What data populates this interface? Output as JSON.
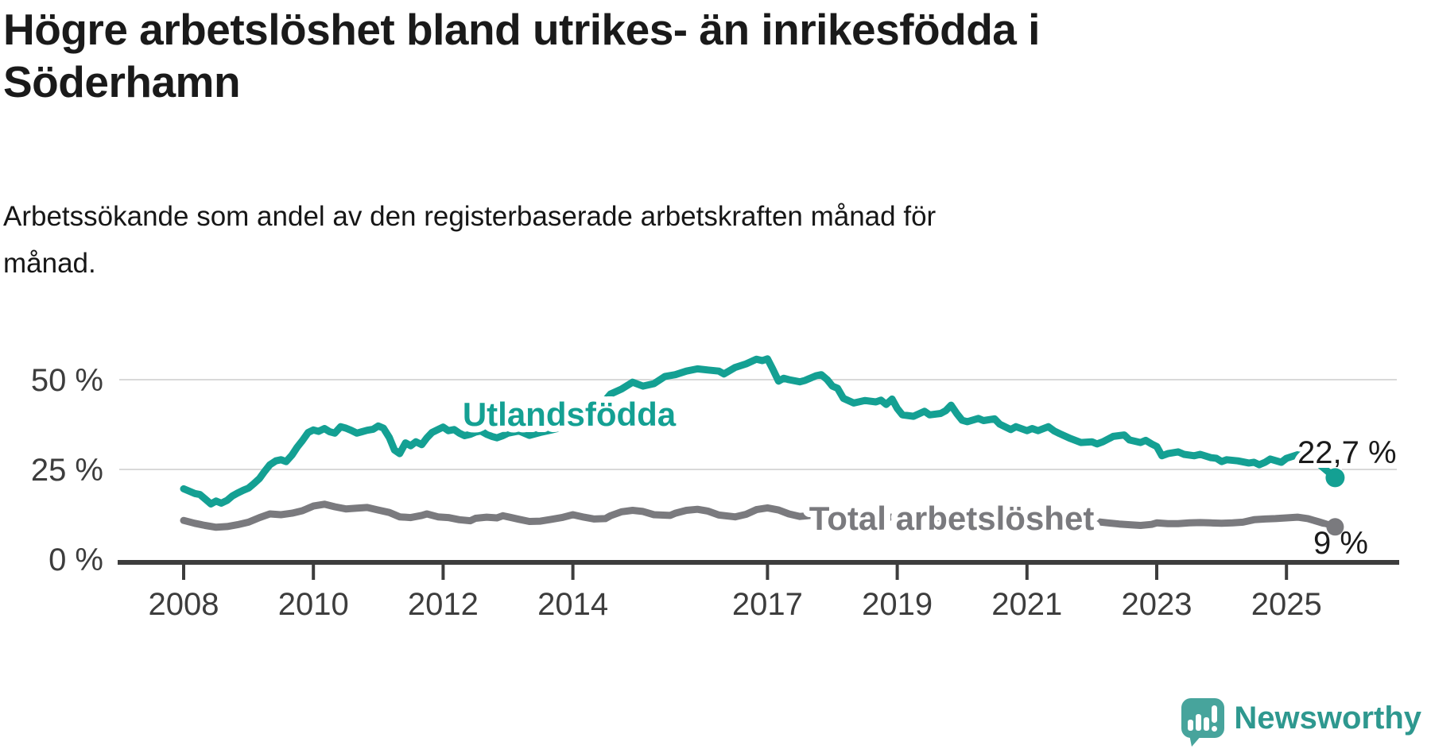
{
  "page": {
    "title_lines": [
      "Högre arbetslöshet bland utrikes- än inrikesfödda i",
      "Söderhamn"
    ],
    "subtitle_lines": [
      "Arbetssökande som andel av den registerbaserade arbetskraften månad för",
      "månad."
    ]
  },
  "footer": {
    "brand": "Newsworthy",
    "logo_icon": "newsworthy-speech-bubble-bar-chart-icon"
  },
  "colors": {
    "foreign_born_line": "#14A093",
    "total_line": "#7A7A7E",
    "grid": "#D9D9D9",
    "axis": "#3D3D3D",
    "annotation_text": "#1A1A1A",
    "logo_bubble": "#47A49C",
    "logo_text": "#2E988F"
  },
  "chart_data": {
    "type": "line",
    "title": "Högre arbetslöshet bland utrikes- än inrikesfödda i Söderhamn",
    "subtitle": "Arbetssökande som andel av den registerbaserade arbetskraften månad för månad.",
    "unit": "%",
    "xlim": [
      2008,
      2026.2
    ],
    "ylim": [
      0,
      58
    ],
    "grid": "horizontal-only",
    "x_ticks": [
      {
        "year": 2008,
        "label": "2008"
      },
      {
        "year": 2010,
        "label": "2010"
      },
      {
        "year": 2012,
        "label": "2012"
      },
      {
        "year": 2014,
        "label": "2014"
      },
      {
        "year": 2017,
        "label": "2017"
      },
      {
        "year": 2019,
        "label": "2019"
      },
      {
        "year": 2021,
        "label": "2021"
      },
      {
        "year": 2023,
        "label": "2023"
      },
      {
        "year": 2025,
        "label": "2025"
      }
    ],
    "y_ticks": [
      {
        "value": 0,
        "label": "0 %"
      },
      {
        "value": 25,
        "label": "25 %"
      },
      {
        "value": 50,
        "label": "50 %"
      }
    ],
    "series": [
      {
        "name": "Utlandsfödda",
        "color": "#14A093",
        "end_label": "22,7 %",
        "end_value": 22.7,
        "points": [
          [
            2008.0,
            19.6
          ],
          [
            2008.08,
            19.0
          ],
          [
            2008.17,
            18.3
          ],
          [
            2008.25,
            18.0
          ],
          [
            2008.33,
            16.8
          ],
          [
            2008.42,
            15.4
          ],
          [
            2008.5,
            16.2
          ],
          [
            2008.58,
            15.6
          ],
          [
            2008.67,
            16.4
          ],
          [
            2008.75,
            17.6
          ],
          [
            2008.83,
            18.4
          ],
          [
            2008.92,
            19.2
          ],
          [
            2009.0,
            19.8
          ],
          [
            2009.08,
            21.0
          ],
          [
            2009.17,
            22.5
          ],
          [
            2009.25,
            24.5
          ],
          [
            2009.33,
            26.3
          ],
          [
            2009.42,
            27.4
          ],
          [
            2009.5,
            27.7
          ],
          [
            2009.58,
            27.2
          ],
          [
            2009.67,
            29.0
          ],
          [
            2009.75,
            31.2
          ],
          [
            2009.83,
            33.0
          ],
          [
            2009.92,
            35.3
          ],
          [
            2010.0,
            36.0
          ],
          [
            2010.08,
            35.6
          ],
          [
            2010.17,
            36.4
          ],
          [
            2010.25,
            35.5
          ],
          [
            2010.33,
            35.1
          ],
          [
            2010.42,
            36.9
          ],
          [
            2010.5,
            36.5
          ],
          [
            2010.58,
            35.9
          ],
          [
            2010.67,
            35.1
          ],
          [
            2010.75,
            35.5
          ],
          [
            2010.83,
            35.9
          ],
          [
            2010.92,
            36.2
          ],
          [
            2011.0,
            37.1
          ],
          [
            2011.08,
            36.5
          ],
          [
            2011.17,
            33.9
          ],
          [
            2011.25,
            30.4
          ],
          [
            2011.33,
            29.4
          ],
          [
            2011.42,
            32.4
          ],
          [
            2011.5,
            31.6
          ],
          [
            2011.58,
            32.7
          ],
          [
            2011.67,
            31.9
          ],
          [
            2011.75,
            33.8
          ],
          [
            2011.83,
            35.3
          ],
          [
            2011.92,
            36.1
          ],
          [
            2012.0,
            36.8
          ],
          [
            2012.08,
            35.8
          ],
          [
            2012.17,
            36.1
          ],
          [
            2012.25,
            35.1
          ],
          [
            2012.33,
            34.4
          ],
          [
            2012.42,
            34.8
          ],
          [
            2012.5,
            35.4
          ],
          [
            2012.58,
            35.7
          ],
          [
            2012.67,
            34.8
          ],
          [
            2012.75,
            34.2
          ],
          [
            2012.83,
            33.8
          ],
          [
            2012.92,
            34.4
          ],
          [
            2013.0,
            35.1
          ],
          [
            2013.17,
            35.7
          ],
          [
            2013.33,
            34.5
          ],
          [
            2013.5,
            35.3
          ],
          [
            2013.67,
            36.0
          ],
          [
            2013.83,
            36.7
          ],
          [
            2014.0,
            37.8
          ],
          [
            2014.17,
            39.4
          ],
          [
            2014.33,
            41.8
          ],
          [
            2014.5,
            44.3
          ],
          [
            2014.58,
            46.0
          ],
          [
            2014.75,
            47.4
          ],
          [
            2014.92,
            49.3
          ],
          [
            2015.08,
            48.2
          ],
          [
            2015.25,
            48.9
          ],
          [
            2015.42,
            50.9
          ],
          [
            2015.58,
            51.4
          ],
          [
            2015.75,
            52.4
          ],
          [
            2015.92,
            53.0
          ],
          [
            2016.08,
            52.7
          ],
          [
            2016.25,
            52.4
          ],
          [
            2016.33,
            51.6
          ],
          [
            2016.5,
            53.4
          ],
          [
            2016.67,
            54.4
          ],
          [
            2016.83,
            55.7
          ],
          [
            2016.92,
            55.3
          ],
          [
            2017.0,
            55.8
          ],
          [
            2017.08,
            53.0
          ],
          [
            2017.17,
            49.6
          ],
          [
            2017.25,
            50.4
          ],
          [
            2017.33,
            50.0
          ],
          [
            2017.5,
            49.4
          ],
          [
            2017.58,
            49.8
          ],
          [
            2017.75,
            51.1
          ],
          [
            2017.83,
            51.4
          ],
          [
            2017.92,
            50.0
          ],
          [
            2018.0,
            48.2
          ],
          [
            2018.08,
            47.6
          ],
          [
            2018.17,
            44.8
          ],
          [
            2018.33,
            43.5
          ],
          [
            2018.5,
            44.2
          ],
          [
            2018.67,
            43.8
          ],
          [
            2018.75,
            44.3
          ],
          [
            2018.83,
            43.1
          ],
          [
            2018.92,
            44.6
          ],
          [
            2019.0,
            42.0
          ],
          [
            2019.08,
            40.2
          ],
          [
            2019.25,
            39.8
          ],
          [
            2019.42,
            41.2
          ],
          [
            2019.5,
            40.2
          ],
          [
            2019.67,
            40.6
          ],
          [
            2019.75,
            41.4
          ],
          [
            2019.83,
            42.9
          ],
          [
            2019.92,
            40.5
          ],
          [
            2020.0,
            38.7
          ],
          [
            2020.08,
            38.3
          ],
          [
            2020.25,
            39.2
          ],
          [
            2020.33,
            38.6
          ],
          [
            2020.5,
            39.1
          ],
          [
            2020.58,
            37.6
          ],
          [
            2020.75,
            36.1
          ],
          [
            2020.83,
            36.9
          ],
          [
            2021.0,
            35.8
          ],
          [
            2021.08,
            36.4
          ],
          [
            2021.17,
            35.8
          ],
          [
            2021.33,
            36.9
          ],
          [
            2021.42,
            35.7
          ],
          [
            2021.5,
            35.0
          ],
          [
            2021.67,
            33.6
          ],
          [
            2021.83,
            32.5
          ],
          [
            2022.0,
            32.7
          ],
          [
            2022.08,
            32.1
          ],
          [
            2022.17,
            32.7
          ],
          [
            2022.33,
            34.2
          ],
          [
            2022.5,
            34.6
          ],
          [
            2022.58,
            33.2
          ],
          [
            2022.75,
            32.5
          ],
          [
            2022.83,
            33.1
          ],
          [
            2022.92,
            32.1
          ],
          [
            2023.0,
            31.4
          ],
          [
            2023.08,
            28.8
          ],
          [
            2023.17,
            29.4
          ],
          [
            2023.33,
            29.9
          ],
          [
            2023.42,
            29.2
          ],
          [
            2023.58,
            28.8
          ],
          [
            2023.67,
            29.2
          ],
          [
            2023.83,
            28.3
          ],
          [
            2023.92,
            28.1
          ],
          [
            2024.0,
            27.2
          ],
          [
            2024.08,
            27.7
          ],
          [
            2024.25,
            27.4
          ],
          [
            2024.42,
            26.8
          ],
          [
            2024.5,
            27.0
          ],
          [
            2024.58,
            26.3
          ],
          [
            2024.67,
            27.0
          ],
          [
            2024.75,
            27.9
          ],
          [
            2024.92,
            27.0
          ],
          [
            2025.0,
            28.1
          ],
          [
            2025.17,
            29.1
          ],
          [
            2025.33,
            28.6
          ],
          [
            2025.5,
            26.5
          ],
          [
            2025.75,
            22.7
          ]
        ]
      },
      {
        "name": "Total arbetslöshet",
        "color": "#7A7A7E",
        "end_label": "9 %",
        "end_value": 9.0,
        "points": [
          [
            2008.0,
            10.8
          ],
          [
            2008.17,
            10.0
          ],
          [
            2008.33,
            9.4
          ],
          [
            2008.5,
            8.9
          ],
          [
            2008.67,
            9.1
          ],
          [
            2008.83,
            9.6
          ],
          [
            2009.0,
            10.3
          ],
          [
            2009.17,
            11.6
          ],
          [
            2009.33,
            12.6
          ],
          [
            2009.5,
            12.4
          ],
          [
            2009.67,
            12.8
          ],
          [
            2009.83,
            13.5
          ],
          [
            2010.0,
            14.8
          ],
          [
            2010.17,
            15.3
          ],
          [
            2010.33,
            14.6
          ],
          [
            2010.5,
            14.0
          ],
          [
            2010.67,
            14.2
          ],
          [
            2010.83,
            14.4
          ],
          [
            2011.0,
            13.7
          ],
          [
            2011.17,
            13.0
          ],
          [
            2011.33,
            11.8
          ],
          [
            2011.5,
            11.6
          ],
          [
            2011.67,
            12.2
          ],
          [
            2011.75,
            12.6
          ],
          [
            2011.92,
            11.8
          ],
          [
            2012.08,
            11.6
          ],
          [
            2012.25,
            11.0
          ],
          [
            2012.42,
            10.7
          ],
          [
            2012.5,
            11.4
          ],
          [
            2012.67,
            11.7
          ],
          [
            2012.83,
            11.5
          ],
          [
            2012.92,
            12.1
          ],
          [
            2013.0,
            11.8
          ],
          [
            2013.17,
            11.1
          ],
          [
            2013.33,
            10.5
          ],
          [
            2013.5,
            10.6
          ],
          [
            2013.67,
            11.1
          ],
          [
            2013.83,
            11.6
          ],
          [
            2014.0,
            12.4
          ],
          [
            2014.17,
            11.7
          ],
          [
            2014.33,
            11.2
          ],
          [
            2014.5,
            11.3
          ],
          [
            2014.58,
            12.1
          ],
          [
            2014.75,
            13.2
          ],
          [
            2014.92,
            13.6
          ],
          [
            2015.08,
            13.3
          ],
          [
            2015.25,
            12.4
          ],
          [
            2015.5,
            12.2
          ],
          [
            2015.58,
            12.8
          ],
          [
            2015.75,
            13.6
          ],
          [
            2015.92,
            13.9
          ],
          [
            2016.08,
            13.4
          ],
          [
            2016.25,
            12.3
          ],
          [
            2016.5,
            11.8
          ],
          [
            2016.67,
            12.5
          ],
          [
            2016.83,
            13.8
          ],
          [
            2017.0,
            14.3
          ],
          [
            2017.17,
            13.7
          ],
          [
            2017.33,
            12.6
          ],
          [
            2017.5,
            11.9
          ],
          [
            2017.67,
            12.2
          ],
          [
            2017.83,
            12.7
          ],
          [
            2018.0,
            12.3
          ],
          [
            2018.17,
            11.8
          ],
          [
            2018.33,
            11.2
          ],
          [
            2018.5,
            11.0
          ],
          [
            2018.67,
            11.4
          ],
          [
            2018.83,
            11.8
          ],
          [
            2019.0,
            11.6
          ],
          [
            2019.17,
            11.2
          ],
          [
            2019.33,
            10.9
          ],
          [
            2019.5,
            11.0
          ],
          [
            2019.67,
            11.4
          ],
          [
            2019.83,
            11.8
          ],
          [
            2020.0,
            12.0
          ],
          [
            2020.25,
            12.9
          ],
          [
            2020.5,
            13.3
          ],
          [
            2020.67,
            12.9
          ],
          [
            2020.83,
            12.6
          ],
          [
            2021.0,
            12.4
          ],
          [
            2021.25,
            11.9
          ],
          [
            2021.5,
            11.4
          ],
          [
            2021.75,
            10.9
          ],
          [
            2022.0,
            10.6
          ],
          [
            2022.25,
            10.1
          ],
          [
            2022.42,
            9.8
          ],
          [
            2022.58,
            9.6
          ],
          [
            2022.75,
            9.4
          ],
          [
            2022.92,
            9.7
          ],
          [
            2023.0,
            10.1
          ],
          [
            2023.17,
            9.9
          ],
          [
            2023.33,
            9.9
          ],
          [
            2023.5,
            10.1
          ],
          [
            2023.67,
            10.2
          ],
          [
            2023.83,
            10.1
          ],
          [
            2024.0,
            10.0
          ],
          [
            2024.17,
            10.1
          ],
          [
            2024.33,
            10.3
          ],
          [
            2024.5,
            11.0
          ],
          [
            2024.67,
            11.2
          ],
          [
            2024.83,
            11.3
          ],
          [
            2025.0,
            11.5
          ],
          [
            2025.17,
            11.7
          ],
          [
            2025.33,
            11.3
          ],
          [
            2025.5,
            10.4
          ],
          [
            2025.75,
            9.0
          ]
        ]
      }
    ]
  }
}
